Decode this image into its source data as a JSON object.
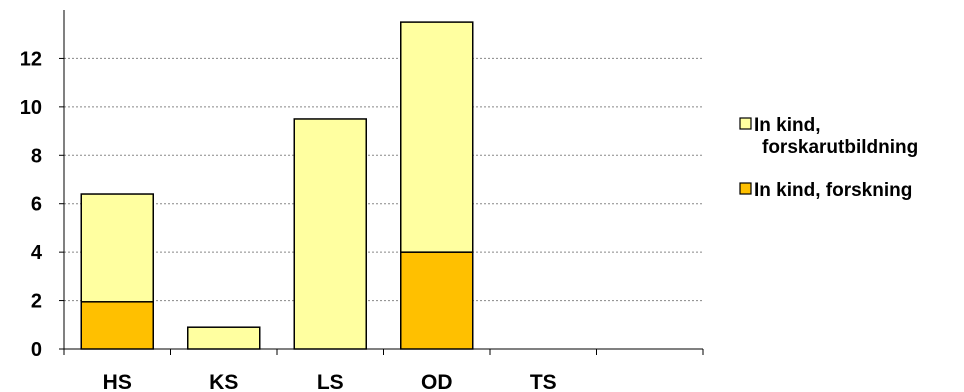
{
  "chart_data": {
    "type": "bar",
    "stacked": true,
    "categories": [
      "HS",
      "KS",
      "LS",
      "OD",
      "TS"
    ],
    "series": [
      {
        "name": "In kind, forskning",
        "values": [
          1.95,
          0,
          0,
          4.0,
          0
        ],
        "color": "#FFC000"
      },
      {
        "name": "In kind, forskarutbildning",
        "values": [
          4.45,
          0.9,
          9.5,
          9.5,
          0
        ],
        "color": "#FFFFA0"
      }
    ],
    "legend_order": [
      1,
      0
    ],
    "legend_position": "right",
    "ylim": [
      0,
      14
    ],
    "yticks": [
      0,
      2,
      4,
      6,
      8,
      10,
      12
    ],
    "grid": true,
    "title": "",
    "xlabel": "",
    "ylabel": ""
  }
}
